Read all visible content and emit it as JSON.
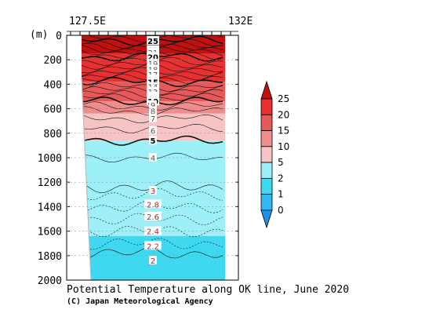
{
  "chart_data": {
    "type": "heatmap",
    "title": "Potential Temperature along OK line, June 2020",
    "credit": "(C) Japan Meteorological Agency",
    "x_axis": {
      "labels": [
        "127.5E",
        "132E"
      ],
      "range": [
        "127.5E",
        "132E"
      ]
    },
    "y_axis": {
      "unit_label": "(m)",
      "range": [
        0,
        2000
      ],
      "reversed": true,
      "ticks": [
        0,
        200,
        400,
        600,
        800,
        1000,
        1200,
        1400,
        1600,
        1800,
        2000
      ]
    },
    "colorbar": {
      "orientation": "vertical",
      "labels": [
        "0",
        "1",
        "2",
        "5",
        "10",
        "15",
        "20",
        "25"
      ],
      "bins": [
        {
          "from": null,
          "to": 0,
          "color": "#1e90e8"
        },
        {
          "from": 0,
          "to": 1,
          "color": "#33b8f0"
        },
        {
          "from": 1,
          "to": 2,
          "color": "#3ed8f0"
        },
        {
          "from": 2,
          "to": 5,
          "color": "#9ef0f8"
        },
        {
          "from": 5,
          "to": 10,
          "color": "#f6c4c4"
        },
        {
          "from": 10,
          "to": 15,
          "color": "#f08c8c"
        },
        {
          "from": 15,
          "to": 20,
          "color": "#e85858"
        },
        {
          "from": 20,
          "to": 25,
          "color": "#e83030"
        },
        {
          "from": 25,
          "to": null,
          "color": "#c01010"
        }
      ]
    },
    "contour_labels": [
      {
        "text": "25",
        "depth": 45,
        "bold": true
      },
      {
        "text": "22",
        "depth": 120
      },
      {
        "text": "21",
        "depth": 140
      },
      {
        "text": "20",
        "depth": 175,
        "bold": true
      },
      {
        "text": "19",
        "depth": 230
      },
      {
        "text": "18",
        "depth": 280
      },
      {
        "text": "17",
        "depth": 320
      },
      {
        "text": "16",
        "depth": 360
      },
      {
        "text": "15",
        "depth": 380,
        "bold": true
      },
      {
        "text": "14",
        "depth": 420
      },
      {
        "text": "13",
        "depth": 460
      },
      {
        "text": "12",
        "depth": 500
      },
      {
        "text": "11",
        "depth": 520
      },
      {
        "text": "10",
        "depth": 540,
        "bold": true
      },
      {
        "text": "9",
        "depth": 570
      },
      {
        "text": "8",
        "depth": 620
      },
      {
        "text": "7",
        "depth": 680
      },
      {
        "text": "6",
        "depth": 780
      },
      {
        "text": "5",
        "depth": 860,
        "bold": true
      },
      {
        "text": "4",
        "depth": 1000
      },
      {
        "text": "3",
        "depth": 1270
      },
      {
        "text": "2.8",
        "depth": 1380
      },
      {
        "text": "2.6",
        "depth": 1480
      },
      {
        "text": "2.4",
        "depth": 1600
      },
      {
        "text": "2.2",
        "depth": 1720
      },
      {
        "text": "2",
        "depth": 1840
      }
    ]
  }
}
